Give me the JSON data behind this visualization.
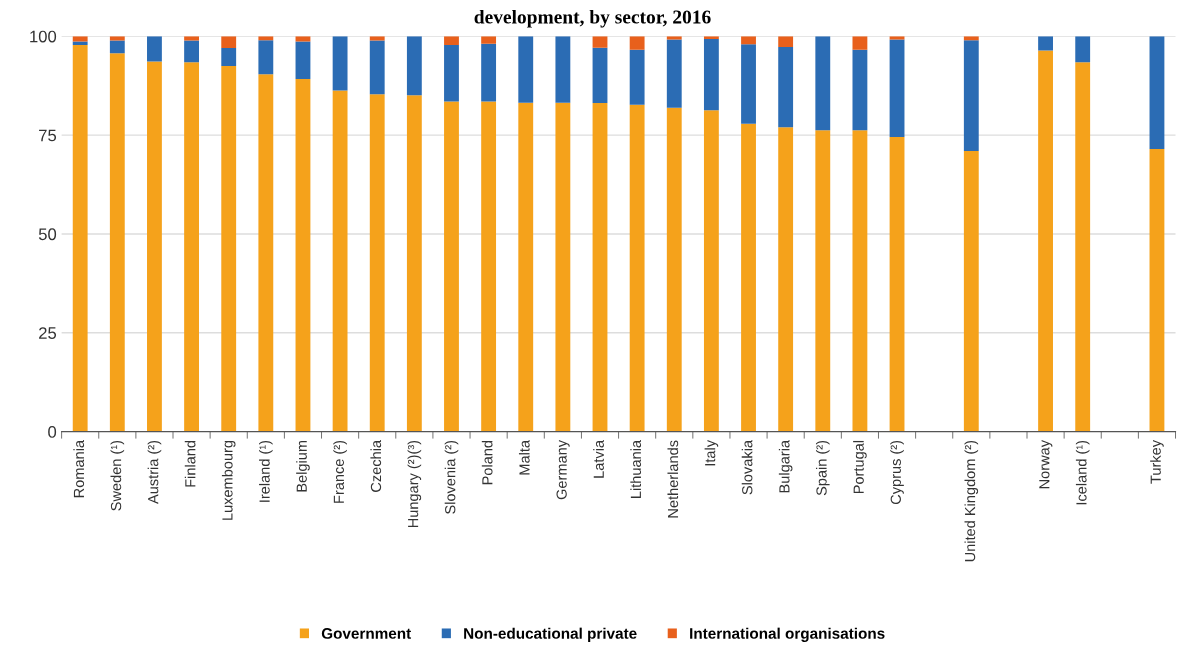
{
  "chart_data": {
    "type": "bar",
    "title": "development, by sector, 2016",
    "stacked": true,
    "categories": [
      "Romania",
      "Sweden (¹)",
      "Austria (²)",
      "Finland",
      "Luxembourg",
      "Ireland (¹)",
      "Belgium",
      "France (²)",
      "Czechia",
      "Hungary (²)(³)",
      "Slovenia (²)",
      "Poland",
      "Malta",
      "Germany",
      "Latvia",
      "Lithuania",
      "Netherlands",
      "Italy",
      "Slovakia",
      "Bulgaria",
      "Spain (²)",
      "Portugal",
      "Cyprus (²)",
      null,
      "United Kingdom (²)",
      null,
      "Norway",
      "Iceland (¹)",
      null,
      "Turkey"
    ],
    "series": [
      {
        "name": "Government",
        "color": "#f5a21b",
        "values": [
          97.8,
          95.7,
          93.6,
          93.4,
          92.5,
          90.4,
          89.2,
          86.3,
          85.3,
          85.1,
          83.5,
          83.5,
          83.2,
          83.2,
          83.1,
          82.7,
          81.9,
          81.3,
          77.9,
          77.0,
          76.2,
          76.2,
          74.5,
          null,
          71.0,
          null,
          96.4,
          93.4,
          null,
          71.5
        ]
      },
      {
        "name": "Non-educational private",
        "color": "#2b6cb4",
        "values": [
          0.9,
          3.2,
          6.4,
          5.5,
          4.5,
          8.6,
          9.5,
          13.7,
          13.6,
          14.9,
          14.3,
          14.6,
          16.8,
          16.8,
          14.0,
          13.9,
          17.3,
          18.0,
          20.1,
          20.3,
          23.8,
          20.4,
          24.7,
          null,
          28.0,
          null,
          3.6,
          6.6,
          null,
          28.5
        ]
      },
      {
        "name": "International organisations",
        "color": "#e8601c",
        "values": [
          1.3,
          1.1,
          0,
          1.1,
          3.0,
          1.0,
          1.3,
          0,
          1.1,
          0,
          2.2,
          1.9,
          0,
          0,
          2.9,
          3.4,
          0.8,
          0.7,
          2.0,
          2.7,
          0,
          3.4,
          0.8,
          null,
          1.0,
          null,
          0,
          0,
          null,
          0
        ]
      }
    ],
    "ylim": [
      0,
      100
    ],
    "yticks": [
      0,
      25,
      50,
      75,
      100
    ],
    "grid": "y",
    "legend": "bottom"
  }
}
